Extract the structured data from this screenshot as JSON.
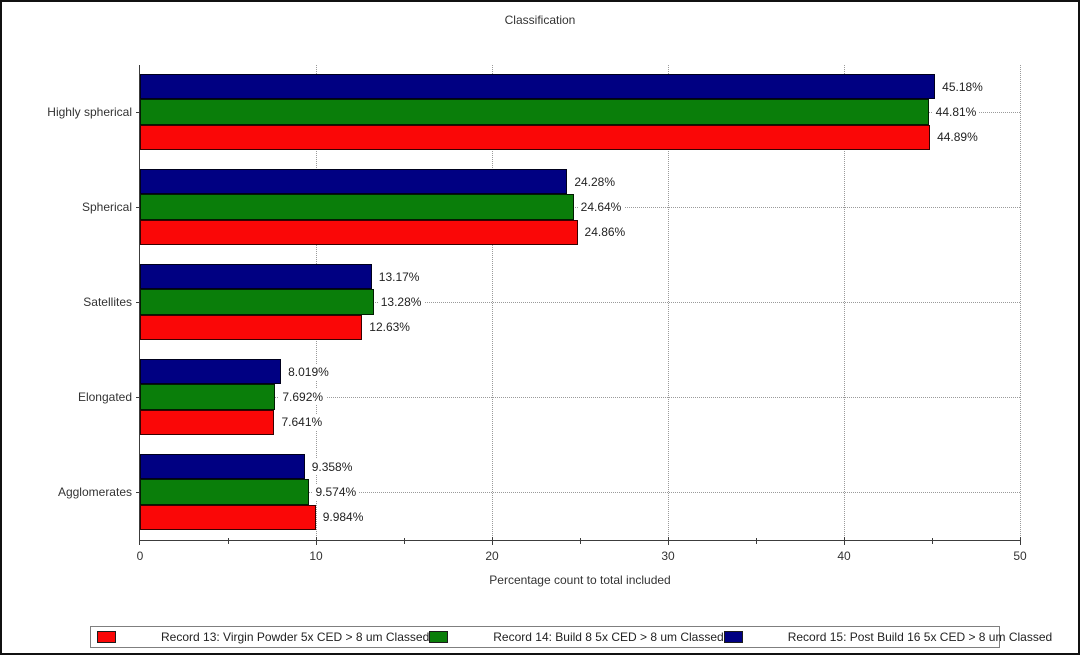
{
  "window": {
    "background": "#ffffff",
    "border_color": "#111111"
  },
  "chart_data": {
    "type": "bar",
    "orientation": "horizontal",
    "title": "Classification",
    "xlabel": "Percentage count to total included",
    "xlim": [
      0,
      50
    ],
    "x_major_ticks": [
      0,
      10,
      20,
      30,
      40,
      50
    ],
    "x_minor_ticks": [
      5,
      15,
      25,
      35,
      45
    ],
    "grid": "dotted",
    "legend_position": "bottom",
    "categories": [
      "Highly spherical",
      "Spherical",
      "Satellites",
      "Elongated",
      "Agglomerates"
    ],
    "series": [
      {
        "name": "Record 13: Virgin Powder 5x CED > 8 um Classed",
        "color": "#fa0707",
        "values": [
          44.89,
          24.86,
          12.63,
          7.641,
          9.984
        ],
        "labels": [
          "44.89%",
          "24.86%",
          "12.63%",
          "7.641%",
          "9.984%"
        ]
      },
      {
        "name": "Record 14: Build 8 5x CED > 8 um Classed",
        "color": "#0a7e0a",
        "values": [
          44.81,
          24.64,
          13.28,
          7.692,
          9.574
        ],
        "labels": [
          "44.81%",
          "24.64%",
          "13.28%",
          "7.692%",
          "9.574%"
        ]
      },
      {
        "name": "Record 15: Post Build 16 5x CED > 8 um Classed",
        "color": "#000082",
        "values": [
          45.18,
          24.28,
          13.17,
          8.019,
          9.358
        ],
        "labels": [
          "45.18%",
          "24.28%",
          "13.17%",
          "8.019%",
          "9.358%"
        ]
      }
    ],
    "bar_row_order_top_to_bottom": [
      2,
      1,
      0
    ]
  }
}
